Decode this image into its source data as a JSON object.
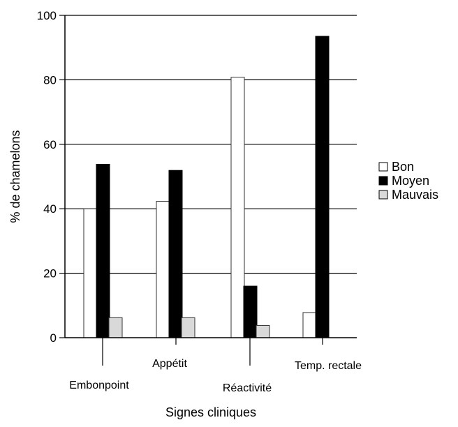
{
  "chart_data": {
    "type": "bar",
    "categories": [
      "Embonpoint",
      "Appétit",
      "Réactivité",
      "Temp. rectale"
    ],
    "series": [
      {
        "name": "Bon",
        "color": "#ffffff",
        "values": [
          40,
          42.3,
          80.8,
          7.8
        ]
      },
      {
        "name": "Moyen",
        "color": "#000000",
        "values": [
          53.8,
          51.9,
          16,
          93.5
        ]
      },
      {
        "name": "Mauvais",
        "color": "#d9d9d9",
        "values": [
          6.2,
          6.2,
          3.8,
          0
        ]
      }
    ],
    "xlabel": "Signes cliniques",
    "ylabel": "% de chamelons",
    "ylim": [
      0,
      100
    ],
    "yticks": [
      0,
      20,
      40,
      60,
      80,
      100
    ],
    "grid": true,
    "legend_position": "right"
  }
}
